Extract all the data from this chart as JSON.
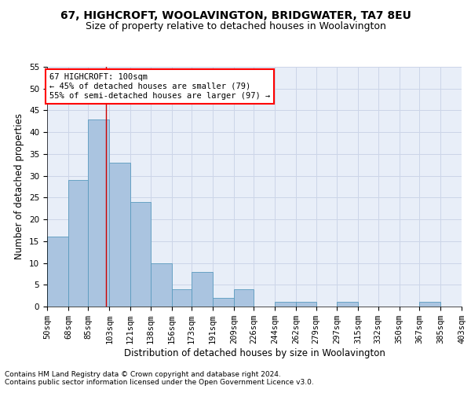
{
  "title": "67, HIGHCROFT, WOOLAVINGTON, BRIDGWATER, TA7 8EU",
  "subtitle": "Size of property relative to detached houses in Woolavington",
  "xlabel": "Distribution of detached houses by size in Woolavington",
  "ylabel": "Number of detached properties",
  "footnote1": "Contains HM Land Registry data © Crown copyright and database right 2024.",
  "footnote2": "Contains public sector information licensed under the Open Government Licence v3.0.",
  "annotation_line1": "67 HIGHCROFT: 100sqm",
  "annotation_line2": "← 45% of detached houses are smaller (79)",
  "annotation_line3": "55% of semi-detached houses are larger (97) →",
  "bin_edges": [
    50,
    68,
    85,
    103,
    121,
    138,
    156,
    173,
    191,
    209,
    226,
    244,
    262,
    279,
    297,
    315,
    332,
    350,
    367,
    385,
    403
  ],
  "bin_labels": [
    "50sqm",
    "68sqm",
    "85sqm",
    "103sqm",
    "121sqm",
    "138sqm",
    "156sqm",
    "173sqm",
    "191sqm",
    "209sqm",
    "226sqm",
    "244sqm",
    "262sqm",
    "279sqm",
    "297sqm",
    "315sqm",
    "332sqm",
    "350sqm",
    "367sqm",
    "385sqm",
    "403sqm"
  ],
  "counts": [
    16,
    29,
    43,
    33,
    24,
    10,
    4,
    8,
    2,
    4,
    0,
    1,
    1,
    0,
    1,
    0,
    0,
    0,
    1,
    0
  ],
  "bar_color": "#aac4e0",
  "bar_edgecolor": "#5a9abe",
  "vline_x": 100,
  "vline_color": "#cc0000",
  "ylim": [
    0,
    55
  ],
  "yticks": [
    0,
    5,
    10,
    15,
    20,
    25,
    30,
    35,
    40,
    45,
    50,
    55
  ],
  "grid_color": "#ccd5e8",
  "background_color": "#e8eef8",
  "title_fontsize": 10,
  "subtitle_fontsize": 9,
  "axis_label_fontsize": 8.5,
  "tick_fontsize": 7.5,
  "annotation_fontsize": 7.5,
  "footnote_fontsize": 6.5
}
